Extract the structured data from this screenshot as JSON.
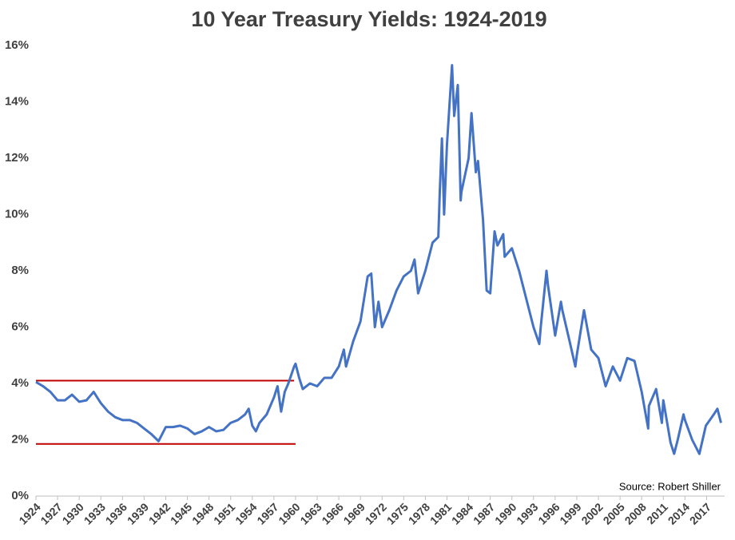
{
  "chart_data": {
    "type": "line",
    "title": "10 Year Treasury Yields: 1924-2019",
    "annotation": "Source: Robert Shiller",
    "color": "#4472c4",
    "x": [
      1924,
      1925,
      1926,
      1927,
      1928,
      1929,
      1930,
      1931,
      1932,
      1933,
      1934,
      1935,
      1936,
      1937,
      1938,
      1939,
      1940,
      1941,
      1942,
      1943,
      1944,
      1945,
      1946,
      1947,
      1948,
      1949,
      1950,
      1951,
      1952,
      1953,
      1953.5,
      1954,
      1954.5,
      1955,
      1956,
      1957,
      1957.5,
      1958,
      1958.5,
      1959,
      1959.8,
      1960,
      1960.5,
      1961,
      1962,
      1963,
      1964,
      1965,
      1966,
      1966.7,
      1967,
      1968,
      1969,
      1970,
      1970.5,
      1971,
      1971.5,
      1972,
      1973,
      1974,
      1975,
      1976,
      1976.5,
      1977,
      1978,
      1979,
      1979.8,
      1980,
      1980.3,
      1980.6,
      1981,
      1981.7,
      1982,
      1982.5,
      1982.9,
      1983,
      1984,
      1984.4,
      1985,
      1985.3,
      1986,
      1986.5,
      1987,
      1987.6,
      1988,
      1988.8,
      1989,
      1990,
      1991,
      1992,
      1993,
      1993.8,
      1994,
      1994.8,
      1995,
      1996,
      1996.8,
      1997,
      1998,
      1998.8,
      1999,
      2000,
      2001,
      2002,
      2003,
      2004,
      2005,
      2006,
      2007,
      2008,
      2008.9,
      2009,
      2010,
      2010.8,
      2011,
      2012,
      2012.5,
      2013,
      2013.8,
      2014,
      2015,
      2016,
      2016.9,
      2018,
      2018.5,
      2019
    ],
    "values": [
      4.05,
      3.9,
      3.7,
      3.4,
      3.4,
      3.6,
      3.35,
      3.4,
      3.7,
      3.3,
      3.0,
      2.8,
      2.7,
      2.7,
      2.6,
      2.4,
      2.2,
      1.95,
      2.45,
      2.45,
      2.5,
      2.4,
      2.2,
      2.3,
      2.45,
      2.3,
      2.35,
      2.6,
      2.7,
      2.9,
      3.1,
      2.5,
      2.3,
      2.6,
      2.9,
      3.5,
      3.9,
      3.0,
      3.7,
      4.0,
      4.6,
      4.7,
      4.2,
      3.8,
      4.0,
      3.9,
      4.2,
      4.2,
      4.6,
      5.2,
      4.6,
      5.5,
      6.2,
      7.8,
      7.9,
      6.0,
      6.9,
      6.0,
      6.6,
      7.3,
      7.8,
      8.0,
      8.4,
      7.2,
      8.0,
      9.0,
      9.2,
      10.8,
      12.7,
      10.0,
      12.5,
      15.3,
      13.5,
      14.6,
      10.5,
      10.8,
      12.0,
      13.6,
      11.5,
      11.9,
      9.8,
      7.3,
      7.2,
      9.4,
      8.9,
      9.3,
      8.5,
      8.8,
      8.0,
      7.0,
      6.0,
      5.4,
      6.0,
      8.0,
      7.5,
      5.7,
      6.9,
      6.6,
      5.5,
      4.6,
      5.0,
      6.6,
      5.2,
      4.9,
      3.9,
      4.6,
      4.1,
      4.9,
      4.8,
      3.7,
      2.4,
      3.2,
      3.8,
      2.6,
      3.4,
      1.9,
      1.5,
      2.0,
      2.9,
      2.7,
      2.0,
      1.5,
      2.5,
      2.9,
      3.1,
      2.6
    ],
    "reference_lines": [
      {
        "value": 4.1,
        "x": [
          1924,
          1959.8
        ],
        "color": "#c00000"
      },
      {
        "value": 1.85,
        "x": [
          1924,
          1960
        ],
        "color": "#c00000"
      }
    ],
    "xlim": [
      1924,
      2019.5
    ],
    "xticks": [
      1924,
      1927,
      1930,
      1933,
      1936,
      1939,
      1942,
      1945,
      1948,
      1951,
      1954,
      1957,
      1960,
      1963,
      1966,
      1969,
      1972,
      1975,
      1978,
      1981,
      1984,
      1987,
      1990,
      1993,
      1996,
      1999,
      2002,
      2005,
      2008,
      2011,
      2014,
      2017
    ],
    "ylim": [
      0,
      16
    ],
    "yticks": [
      {
        "value": 0,
        "label": "0%"
      },
      {
        "value": 2,
        "label": "2%"
      },
      {
        "value": 4,
        "label": "4%"
      },
      {
        "value": 6,
        "label": "6%"
      },
      {
        "value": 8,
        "label": "8%"
      },
      {
        "value": 10,
        "label": "10%"
      },
      {
        "value": 12,
        "label": "12%"
      },
      {
        "value": 14,
        "label": "14%"
      },
      {
        "value": 16,
        "label": "16%"
      }
    ]
  }
}
